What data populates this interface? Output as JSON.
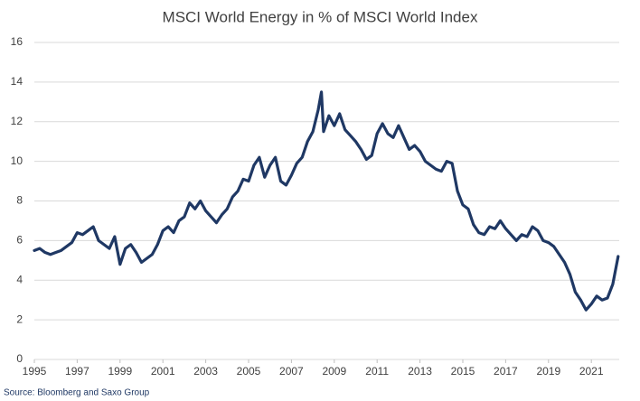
{
  "chart_data": {
    "type": "line",
    "title": "MSCI World Energy in % of MSCI World Index",
    "source": "Source: Bloomberg and Saxo Group",
    "x": [
      1995.0,
      1995.25,
      1995.5,
      1995.75,
      1996.0,
      1996.25,
      1996.5,
      1996.75,
      1997.0,
      1997.25,
      1997.5,
      1997.75,
      1998.0,
      1998.25,
      1998.5,
      1998.75,
      1999.0,
      1999.25,
      1999.5,
      1999.75,
      2000.0,
      2000.25,
      2000.5,
      2000.75,
      2001.0,
      2001.25,
      2001.5,
      2001.75,
      2002.0,
      2002.25,
      2002.5,
      2002.75,
      2003.0,
      2003.25,
      2003.5,
      2003.75,
      2004.0,
      2004.25,
      2004.5,
      2004.75,
      2005.0,
      2005.25,
      2005.5,
      2005.75,
      2006.0,
      2006.25,
      2006.5,
      2006.75,
      2007.0,
      2007.25,
      2007.5,
      2007.75,
      2008.0,
      2008.25,
      2008.4,
      2008.5,
      2008.75,
      2009.0,
      2009.25,
      2009.5,
      2009.75,
      2010.0,
      2010.25,
      2010.5,
      2010.75,
      2011.0,
      2011.25,
      2011.5,
      2011.75,
      2012.0,
      2012.25,
      2012.5,
      2012.75,
      2013.0,
      2013.25,
      2013.5,
      2013.75,
      2014.0,
      2014.25,
      2014.5,
      2014.75,
      2015.0,
      2015.25,
      2015.5,
      2015.75,
      2016.0,
      2016.25,
      2016.5,
      2016.75,
      2017.0,
      2017.25,
      2017.5,
      2017.75,
      2018.0,
      2018.25,
      2018.5,
      2018.75,
      2019.0,
      2019.25,
      2019.5,
      2019.75,
      2020.0,
      2020.25,
      2020.5,
      2020.75,
      2021.0,
      2021.25,
      2021.5,
      2021.75,
      2022.0,
      2022.25
    ],
    "series": [
      {
        "name": "MSCI World Energy",
        "color": "#1f3864",
        "values": [
          5.5,
          5.6,
          5.4,
          5.3,
          5.4,
          5.5,
          5.7,
          5.9,
          6.4,
          6.3,
          6.5,
          6.7,
          6.0,
          5.8,
          5.6,
          6.2,
          4.8,
          5.6,
          5.8,
          5.4,
          4.9,
          5.1,
          5.3,
          5.8,
          6.5,
          6.7,
          6.4,
          7.0,
          7.2,
          7.9,
          7.6,
          8.0,
          7.5,
          7.2,
          6.9,
          7.3,
          7.6,
          8.2,
          8.5,
          9.1,
          9.0,
          9.8,
          10.2,
          9.2,
          9.8,
          10.2,
          9.0,
          8.8,
          9.3,
          9.9,
          10.2,
          11.0,
          11.5,
          12.6,
          13.5,
          11.5,
          12.3,
          11.8,
          12.4,
          11.6,
          11.3,
          11.0,
          10.6,
          10.1,
          10.3,
          11.4,
          11.9,
          11.4,
          11.2,
          11.8,
          11.2,
          10.6,
          10.8,
          10.5,
          10.0,
          9.8,
          9.6,
          9.5,
          10.0,
          9.9,
          8.5,
          7.8,
          7.6,
          6.8,
          6.4,
          6.3,
          6.7,
          6.6,
          7.0,
          6.6,
          6.3,
          6.0,
          6.3,
          6.2,
          6.7,
          6.5,
          6.0,
          5.9,
          5.7,
          5.3,
          4.9,
          4.3,
          3.4,
          3.0,
          2.5,
          2.8,
          3.2,
          3.0,
          3.1,
          3.8,
          5.2
        ]
      }
    ],
    "xlim": [
      1995,
      2022.3
    ],
    "xticks": [
      1995,
      1997,
      1999,
      2001,
      2003,
      2005,
      2007,
      2009,
      2011,
      2013,
      2015,
      2017,
      2019,
      2021
    ],
    "ylim": [
      0,
      16
    ],
    "yticks": [
      0,
      2,
      4,
      6,
      8,
      10,
      12,
      14,
      16
    ],
    "grid": true
  }
}
